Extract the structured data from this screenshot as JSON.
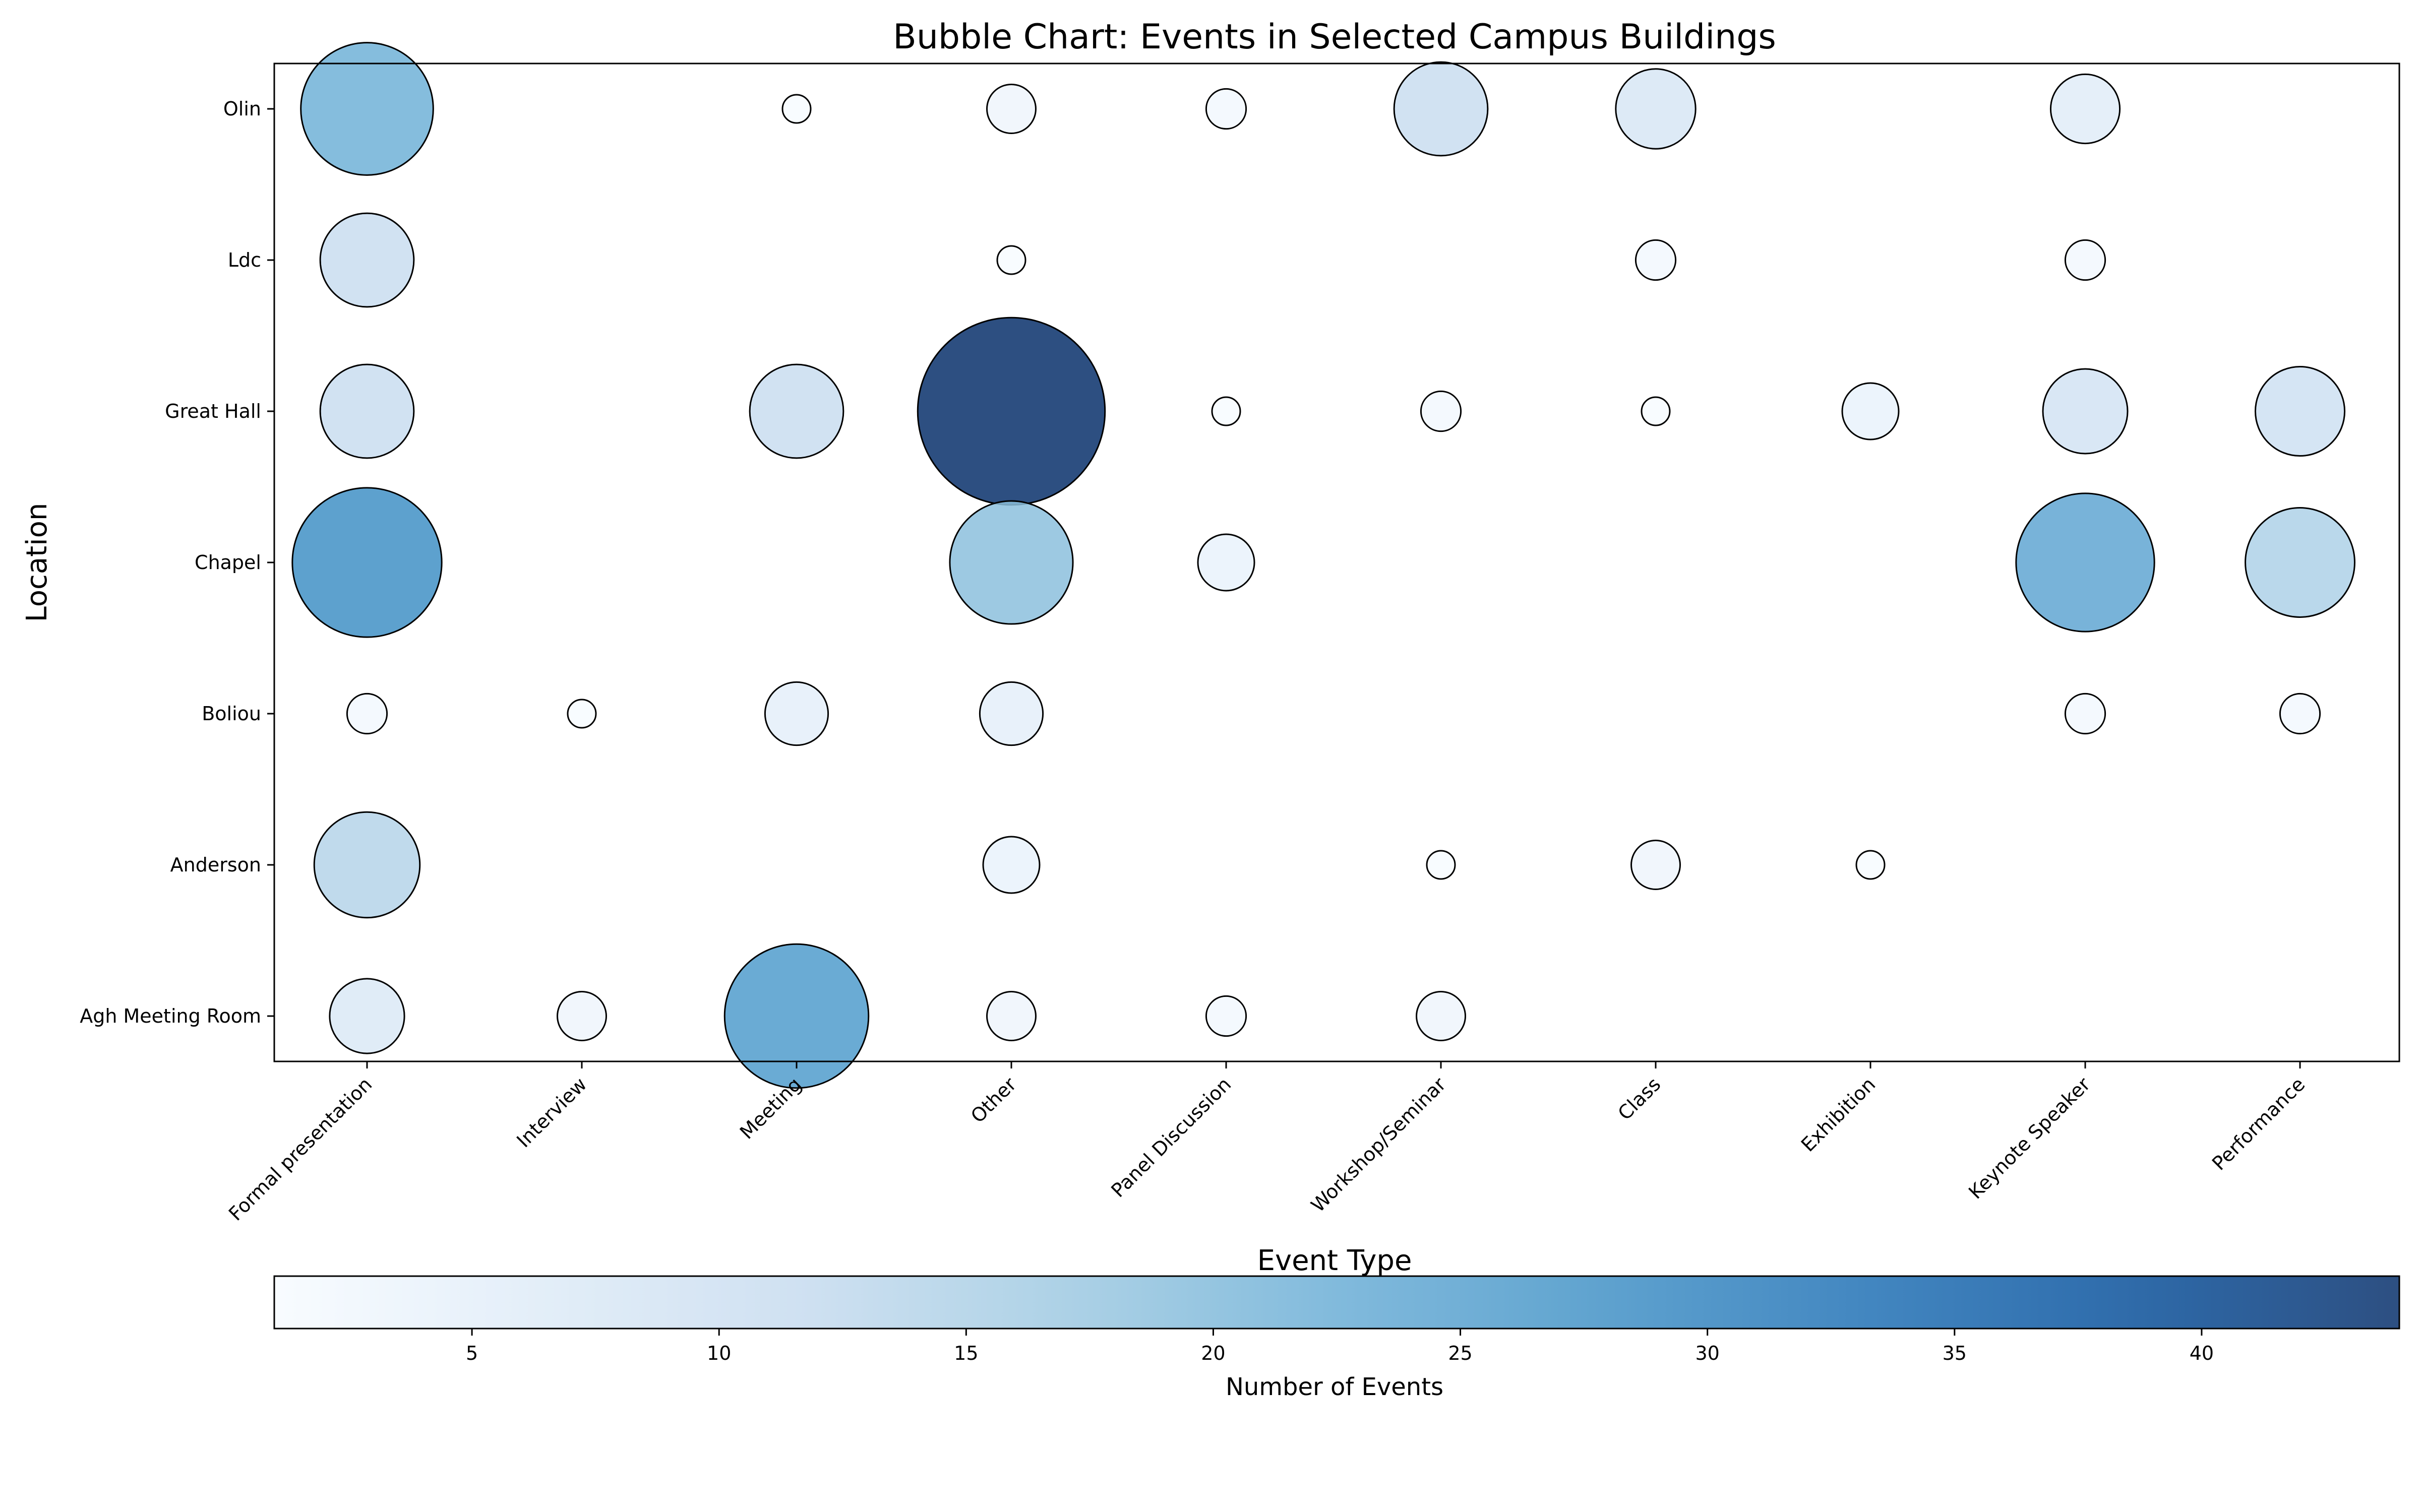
{
  "chart_data": {
    "type": "scatter",
    "subtype": "bubble",
    "title": "Bubble Chart: Events in Selected Campus Buildings",
    "xlabel": "Event Type",
    "ylabel": "Location",
    "x_categories": [
      "Formal presentation",
      "Interview",
      "Meeting",
      "Other",
      "Panel Discussion",
      "Workshop/Seminar",
      "Class",
      "Exhibition",
      "Keynote Speaker",
      "Performance"
    ],
    "y_categories": [
      "Agh Meeting Room",
      "Anderson",
      "Boliou",
      "Chapel",
      "Great Hall",
      "Ldc",
      "Olin"
    ],
    "colorbar": {
      "label": "Number of Events",
      "min": 1,
      "max": 44,
      "ticks": [
        5,
        10,
        15,
        20,
        25,
        30,
        35,
        40
      ],
      "colormap": "Blues",
      "colors": [
        "#f7fbff",
        "#deebf7",
        "#c6dbef",
        "#9ecae1",
        "#6baed6",
        "#4292c6",
        "#2171b5",
        "#08519c",
        "#08306b"
      ]
    },
    "size_encodes": "Number of Events",
    "grid": false,
    "legend": "none",
    "points": [
      {
        "x": "Formal presentation",
        "y": "Olin",
        "value": 22
      },
      {
        "x": "Meeting",
        "y": "Olin",
        "value": 1
      },
      {
        "x": "Other",
        "y": "Olin",
        "value": 3
      },
      {
        "x": "Panel Discussion",
        "y": "Olin",
        "value": 2
      },
      {
        "x": "Workshop/Seminar",
        "y": "Olin",
        "value": 11
      },
      {
        "x": "Class",
        "y": "Olin",
        "value": 8
      },
      {
        "x": "Keynote Speaker",
        "y": "Olin",
        "value": 6
      },
      {
        "x": "Formal presentation",
        "y": "Ldc",
        "value": 11
      },
      {
        "x": "Other",
        "y": "Ldc",
        "value": 1
      },
      {
        "x": "Class",
        "y": "Ldc",
        "value": 2
      },
      {
        "x": "Keynote Speaker",
        "y": "Ldc",
        "value": 2
      },
      {
        "x": "Formal presentation",
        "y": "Great Hall",
        "value": 11
      },
      {
        "x": "Meeting",
        "y": "Great Hall",
        "value": 11
      },
      {
        "x": "Other",
        "y": "Great Hall",
        "value": 44
      },
      {
        "x": "Panel Discussion",
        "y": "Great Hall",
        "value": 1
      },
      {
        "x": "Workshop/Seminar",
        "y": "Great Hall",
        "value": 2
      },
      {
        "x": "Class",
        "y": "Great Hall",
        "value": 1
      },
      {
        "x": "Exhibition",
        "y": "Great Hall",
        "value": 4
      },
      {
        "x": "Keynote Speaker",
        "y": "Great Hall",
        "value": 9
      },
      {
        "x": "Performance",
        "y": "Great Hall",
        "value": 10
      },
      {
        "x": "Formal presentation",
        "y": "Chapel",
        "value": 28
      },
      {
        "x": "Other",
        "y": "Chapel",
        "value": 19
      },
      {
        "x": "Panel Discussion",
        "y": "Chapel",
        "value": 4
      },
      {
        "x": "Keynote Speaker",
        "y": "Chapel",
        "value": 24
      },
      {
        "x": "Performance",
        "y": "Chapel",
        "value": 15
      },
      {
        "x": "Formal presentation",
        "y": "Boliou",
        "value": 2
      },
      {
        "x": "Interview",
        "y": "Boliou",
        "value": 1
      },
      {
        "x": "Meeting",
        "y": "Boliou",
        "value": 5
      },
      {
        "x": "Other",
        "y": "Boliou",
        "value": 5
      },
      {
        "x": "Keynote Speaker",
        "y": "Boliou",
        "value": 2
      },
      {
        "x": "Performance",
        "y": "Boliou",
        "value": 2
      },
      {
        "x": "Formal presentation",
        "y": "Anderson",
        "value": 14
      },
      {
        "x": "Other",
        "y": "Anderson",
        "value": 4
      },
      {
        "x": "Workshop/Seminar",
        "y": "Anderson",
        "value": 1
      },
      {
        "x": "Class",
        "y": "Anderson",
        "value": 3
      },
      {
        "x": "Exhibition",
        "y": "Anderson",
        "value": 1
      },
      {
        "x": "Formal presentation",
        "y": "Agh Meeting Room",
        "value": 7
      },
      {
        "x": "Interview",
        "y": "Agh Meeting Room",
        "value": 3
      },
      {
        "x": "Meeting",
        "y": "Agh Meeting Room",
        "value": 26
      },
      {
        "x": "Other",
        "y": "Agh Meeting Room",
        "value": 3
      },
      {
        "x": "Panel Discussion",
        "y": "Agh Meeting Room",
        "value": 2
      },
      {
        "x": "Workshop/Seminar",
        "y": "Agh Meeting Room",
        "value": 3
      }
    ]
  }
}
